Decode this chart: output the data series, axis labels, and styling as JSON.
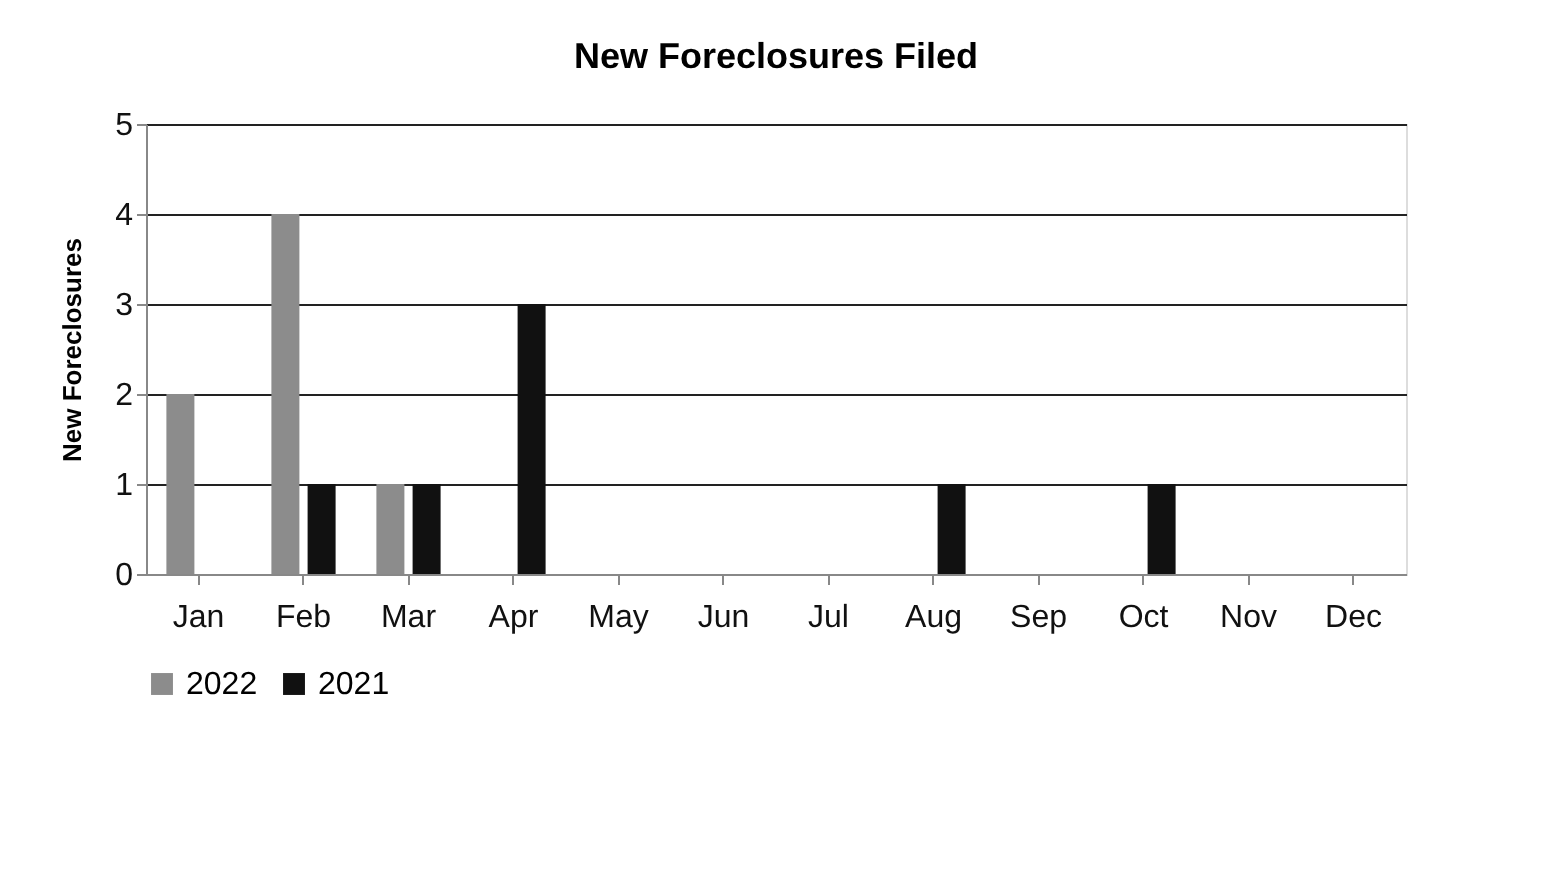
{
  "chart_data": {
    "type": "bar",
    "title": "New Foreclosures Filed",
    "ylabel": "New Foreclosures",
    "categories": [
      "Jan",
      "Feb",
      "Mar",
      "Apr",
      "May",
      "Jun",
      "Jul",
      "Aug",
      "Sep",
      "Oct",
      "Nov",
      "Dec"
    ],
    "series": [
      {
        "name": "2022",
        "color": "#8c8c8c",
        "values": [
          2,
          4,
          1,
          0,
          0,
          0,
          0,
          0,
          0,
          0,
          0,
          0
        ]
      },
      {
        "name": "2021",
        "color": "#111111",
        "values": [
          0,
          1,
          1,
          3,
          0,
          0,
          0,
          1,
          0,
          1,
          0,
          0
        ]
      }
    ],
    "ylim": [
      0,
      5
    ],
    "yticks": [
      0,
      1,
      2,
      3,
      4,
      5
    ],
    "grid": "y",
    "legend": "bottom"
  }
}
